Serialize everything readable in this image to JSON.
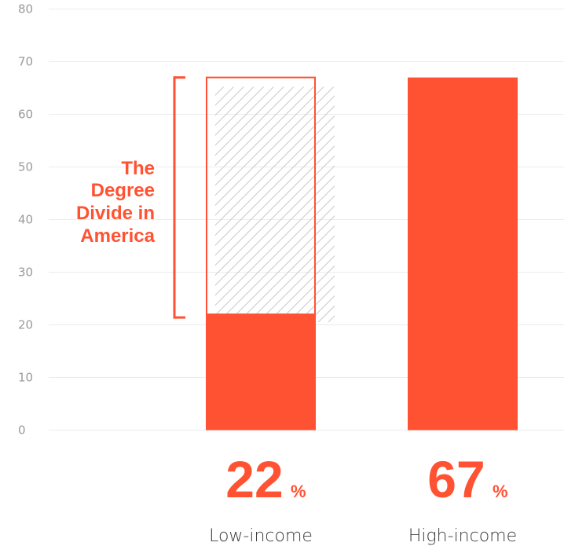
{
  "chart_data": {
    "type": "bar",
    "categories": [
      "Low-income",
      "High-income"
    ],
    "values": [
      22,
      67
    ],
    "value_labels": [
      "22",
      "67"
    ],
    "value_suffix": "%",
    "ylim": [
      0,
      80
    ],
    "yticks": [
      "0",
      "10",
      "20",
      "30",
      "40",
      "50",
      "60",
      "70",
      "80"
    ],
    "grid": true,
    "annotation": {
      "lines": [
        "The",
        "Degree",
        "Divide in",
        "America"
      ],
      "gap_from": 22,
      "gap_to": 67
    }
  },
  "colors": {
    "bar": "#ff5233",
    "grid": "#ececec",
    "hatch": "#c8c8c8",
    "tick_text": "#9a9a9a",
    "category_text": "#3a3a3a"
  }
}
